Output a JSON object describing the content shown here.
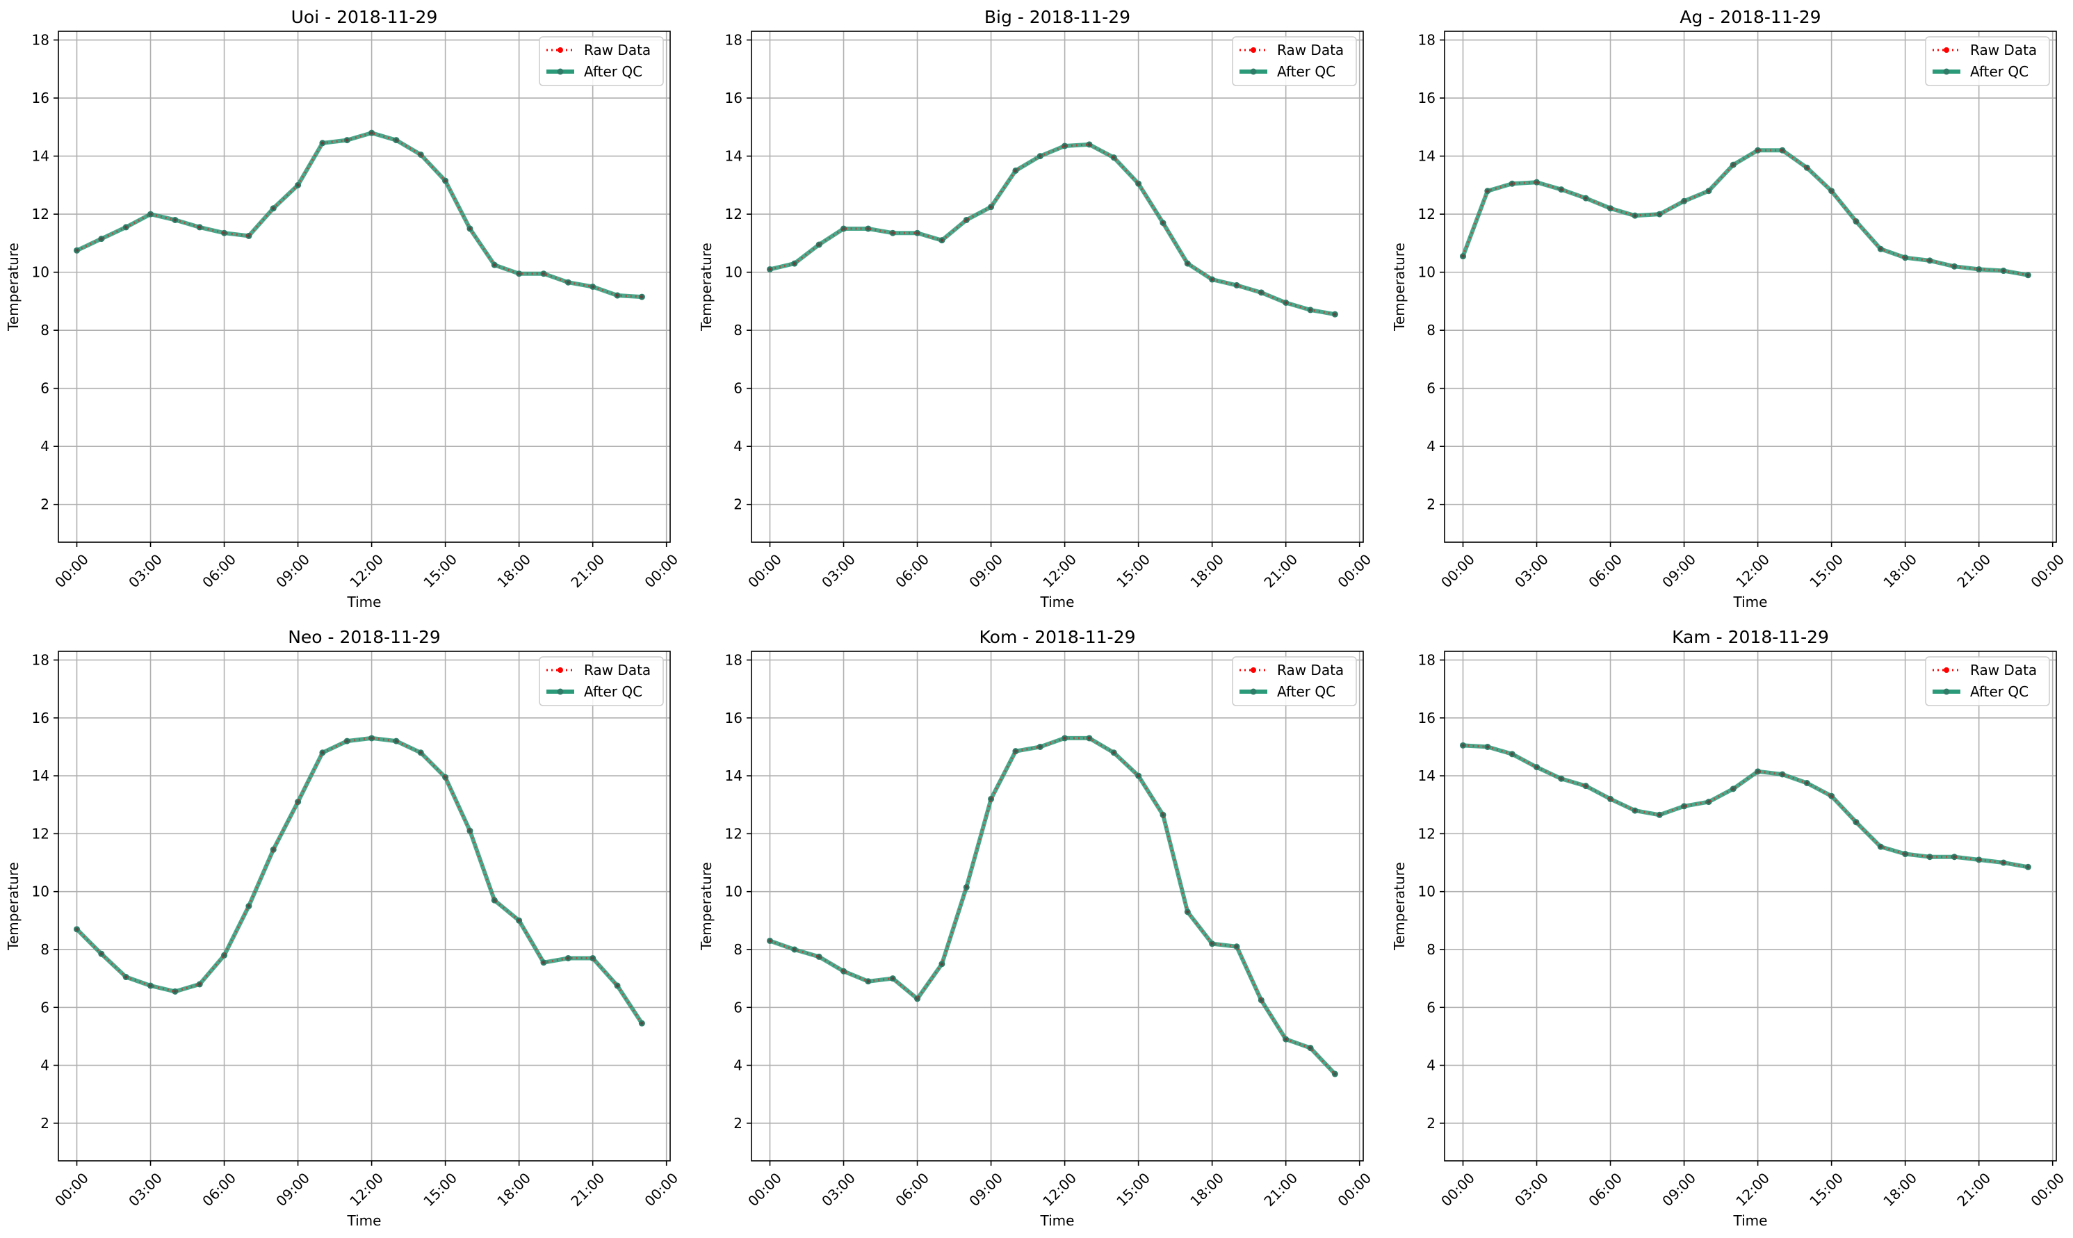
{
  "chart_data": [
    {
      "type": "line",
      "title": "Uoi - 2018-11-29",
      "xlabel": "Time",
      "ylabel": "Temperature",
      "ylim": [
        0.7,
        18.3
      ],
      "yticks": [
        2,
        4,
        6,
        8,
        10,
        12,
        14,
        16,
        18
      ],
      "xlim": [
        -0.75,
        24.15
      ],
      "xticks": [
        0,
        3,
        6,
        9,
        12,
        15,
        18,
        21,
        24
      ],
      "xticklabels": [
        "00:00",
        "03:00",
        "06:00",
        "09:00",
        "12:00",
        "15:00",
        "18:00",
        "21:00",
        "00:00"
      ],
      "x": [
        0,
        1,
        2,
        3,
        4,
        5,
        6,
        7,
        8,
        9,
        10,
        11,
        12,
        13,
        14,
        15,
        16,
        17,
        18,
        19,
        20,
        21,
        22,
        23
      ],
      "grid": true,
      "legend": "top-right",
      "series": [
        {
          "name": "Raw Data",
          "color": "#ff0000",
          "style": "dotted",
          "values": [
            10.75,
            11.15,
            11.55,
            12.0,
            11.8,
            11.55,
            11.35,
            11.25,
            12.2,
            13.0,
            14.45,
            14.55,
            14.8,
            14.55,
            14.05,
            13.15,
            11.5,
            10.25,
            9.95,
            9.95,
            9.65,
            9.5,
            9.2,
            9.15
          ]
        },
        {
          "name": "After QC",
          "color": "#2a9a78",
          "style": "solid",
          "values": [
            10.75,
            11.15,
            11.55,
            12.0,
            11.8,
            11.55,
            11.35,
            11.25,
            12.2,
            13.0,
            14.45,
            14.55,
            14.8,
            14.55,
            14.05,
            13.15,
            11.5,
            10.25,
            9.95,
            9.95,
            9.65,
            9.5,
            9.2,
            9.15
          ]
        }
      ]
    },
    {
      "type": "line",
      "title": "Big - 2018-11-29",
      "xlabel": "Time",
      "ylabel": "Temperature",
      "ylim": [
        0.7,
        18.3
      ],
      "yticks": [
        2,
        4,
        6,
        8,
        10,
        12,
        14,
        16,
        18
      ],
      "xlim": [
        -0.75,
        24.15
      ],
      "xticks": [
        0,
        3,
        6,
        9,
        12,
        15,
        18,
        21,
        24
      ],
      "xticklabels": [
        "00:00",
        "03:00",
        "06:00",
        "09:00",
        "12:00",
        "15:00",
        "18:00",
        "21:00",
        "00:00"
      ],
      "x": [
        0,
        1,
        2,
        3,
        4,
        5,
        6,
        7,
        8,
        9,
        10,
        11,
        12,
        13,
        14,
        15,
        16,
        17,
        18,
        19,
        20,
        21,
        22,
        23
      ],
      "grid": true,
      "legend": "top-right",
      "series": [
        {
          "name": "Raw Data",
          "color": "#ff0000",
          "style": "dotted",
          "values": [
            10.1,
            10.3,
            10.95,
            11.5,
            11.5,
            11.35,
            11.35,
            11.1,
            11.8,
            12.25,
            13.5,
            14.0,
            14.35,
            14.4,
            13.95,
            13.05,
            11.7,
            10.3,
            9.75,
            9.55,
            9.3,
            8.95,
            8.7,
            8.55
          ]
        },
        {
          "name": "After QC",
          "color": "#2a9a78",
          "style": "solid",
          "values": [
            10.1,
            10.3,
            10.95,
            11.5,
            11.5,
            11.35,
            11.35,
            11.1,
            11.8,
            12.25,
            13.5,
            14.0,
            14.35,
            14.4,
            13.95,
            13.05,
            11.7,
            10.3,
            9.75,
            9.55,
            9.3,
            8.95,
            8.7,
            8.55
          ]
        }
      ]
    },
    {
      "type": "line",
      "title": "Ag - 2018-11-29",
      "xlabel": "Time",
      "ylabel": "Temperature",
      "ylim": [
        0.7,
        18.3
      ],
      "yticks": [
        2,
        4,
        6,
        8,
        10,
        12,
        14,
        16,
        18
      ],
      "xlim": [
        -0.75,
        24.15
      ],
      "xticks": [
        0,
        3,
        6,
        9,
        12,
        15,
        18,
        21,
        24
      ],
      "xticklabels": [
        "00:00",
        "03:00",
        "06:00",
        "09:00",
        "12:00",
        "15:00",
        "18:00",
        "21:00",
        "00:00"
      ],
      "x": [
        0,
        1,
        2,
        3,
        4,
        5,
        6,
        7,
        8,
        9,
        10,
        11,
        12,
        13,
        14,
        15,
        16,
        17,
        18,
        19,
        20,
        21,
        22,
        23
      ],
      "grid": true,
      "legend": "top-right",
      "series": [
        {
          "name": "Raw Data",
          "color": "#ff0000",
          "style": "dotted",
          "values": [
            10.55,
            12.8,
            13.05,
            13.1,
            12.85,
            12.55,
            12.2,
            11.95,
            12.0,
            12.45,
            12.8,
            13.7,
            14.2,
            14.2,
            13.6,
            12.8,
            11.75,
            10.8,
            10.5,
            10.4,
            10.2,
            10.1,
            10.05,
            9.9
          ]
        },
        {
          "name": "After QC",
          "color": "#2a9a78",
          "style": "solid",
          "values": [
            10.55,
            12.8,
            13.05,
            13.1,
            12.85,
            12.55,
            12.2,
            11.95,
            12.0,
            12.45,
            12.8,
            13.7,
            14.2,
            14.2,
            13.6,
            12.8,
            11.75,
            10.8,
            10.5,
            10.4,
            10.2,
            10.1,
            10.05,
            9.9
          ]
        }
      ]
    },
    {
      "type": "line",
      "title": "Neo - 2018-11-29",
      "xlabel": "Time",
      "ylabel": "Temperature",
      "ylim": [
        0.7,
        18.3
      ],
      "yticks": [
        2,
        4,
        6,
        8,
        10,
        12,
        14,
        16,
        18
      ],
      "xlim": [
        -0.75,
        24.15
      ],
      "xticks": [
        0,
        3,
        6,
        9,
        12,
        15,
        18,
        21,
        24
      ],
      "xticklabels": [
        "00:00",
        "03:00",
        "06:00",
        "09:00",
        "12:00",
        "15:00",
        "18:00",
        "21:00",
        "00:00"
      ],
      "x": [
        0,
        1,
        2,
        3,
        4,
        5,
        6,
        7,
        8,
        9,
        10,
        11,
        12,
        13,
        14,
        15,
        16,
        17,
        18,
        19,
        20,
        21,
        22,
        23
      ],
      "grid": true,
      "legend": "top-right",
      "series": [
        {
          "name": "Raw Data",
          "color": "#ff0000",
          "style": "dotted",
          "values": [
            8.7,
            7.85,
            7.05,
            6.75,
            6.55,
            6.8,
            7.8,
            9.5,
            11.45,
            13.1,
            14.8,
            15.2,
            15.3,
            15.2,
            14.8,
            13.95,
            12.1,
            9.7,
            9.0,
            7.55,
            7.7,
            7.7,
            6.75,
            5.45
          ]
        },
        {
          "name": "After QC",
          "color": "#2a9a78",
          "style": "solid",
          "values": [
            8.7,
            7.85,
            7.05,
            6.75,
            6.55,
            6.8,
            7.8,
            9.5,
            11.45,
            13.1,
            14.8,
            15.2,
            15.3,
            15.2,
            14.8,
            13.95,
            12.1,
            9.7,
            9.0,
            7.55,
            7.7,
            7.7,
            6.75,
            5.45
          ]
        }
      ]
    },
    {
      "type": "line",
      "title": "Kom - 2018-11-29",
      "xlabel": "Time",
      "ylabel": "Temperature",
      "ylim": [
        0.7,
        18.3
      ],
      "yticks": [
        2,
        4,
        6,
        8,
        10,
        12,
        14,
        16,
        18
      ],
      "xlim": [
        -0.75,
        24.15
      ],
      "xticks": [
        0,
        3,
        6,
        9,
        12,
        15,
        18,
        21,
        24
      ],
      "xticklabels": [
        "00:00",
        "03:00",
        "06:00",
        "09:00",
        "12:00",
        "15:00",
        "18:00",
        "21:00",
        "00:00"
      ],
      "x": [
        0,
        1,
        2,
        3,
        4,
        5,
        6,
        7,
        8,
        9,
        10,
        11,
        12,
        13,
        14,
        15,
        16,
        17,
        18,
        19,
        20,
        21,
        22,
        23
      ],
      "grid": true,
      "legend": "top-right",
      "series": [
        {
          "name": "Raw Data",
          "color": "#ff0000",
          "style": "dotted",
          "values": [
            8.3,
            8.0,
            7.75,
            7.25,
            6.9,
            7.0,
            6.3,
            7.5,
            10.15,
            13.2,
            14.85,
            15.0,
            15.3,
            15.3,
            14.8,
            14.0,
            12.65,
            9.3,
            8.2,
            8.1,
            6.25,
            4.9,
            4.6,
            3.7
          ]
        },
        {
          "name": "After QC",
          "color": "#2a9a78",
          "style": "solid",
          "values": [
            8.3,
            8.0,
            7.75,
            7.25,
            6.9,
            7.0,
            6.3,
            7.5,
            10.15,
            13.2,
            14.85,
            15.0,
            15.3,
            15.3,
            14.8,
            14.0,
            12.65,
            9.3,
            8.2,
            8.1,
            6.25,
            4.9,
            4.6,
            3.7
          ]
        }
      ]
    },
    {
      "type": "line",
      "title": "Kam - 2018-11-29",
      "xlabel": "Time",
      "ylabel": "Temperature",
      "ylim": [
        0.7,
        18.3
      ],
      "yticks": [
        2,
        4,
        6,
        8,
        10,
        12,
        14,
        16,
        18
      ],
      "xlim": [
        -0.75,
        24.15
      ],
      "xticks": [
        0,
        3,
        6,
        9,
        12,
        15,
        18,
        21,
        24
      ],
      "xticklabels": [
        "00:00",
        "03:00",
        "06:00",
        "09:00",
        "12:00",
        "15:00",
        "18:00",
        "21:00",
        "00:00"
      ],
      "x": [
        0,
        1,
        2,
        3,
        4,
        5,
        6,
        7,
        8,
        9,
        10,
        11,
        12,
        13,
        14,
        15,
        16,
        17,
        18,
        19,
        20,
        21,
        22,
        23
      ],
      "grid": true,
      "legend": "top-right",
      "series": [
        {
          "name": "Raw Data",
          "color": "#ff0000",
          "style": "dotted",
          "values": [
            15.05,
            15.0,
            14.75,
            14.3,
            13.9,
            13.65,
            13.2,
            12.8,
            12.65,
            12.95,
            13.1,
            13.55,
            14.15,
            14.05,
            13.75,
            13.3,
            12.4,
            11.55,
            11.3,
            11.2,
            11.2,
            11.1,
            11.0,
            10.85
          ]
        },
        {
          "name": "After QC",
          "color": "#2a9a78",
          "style": "solid",
          "values": [
            15.05,
            15.0,
            14.75,
            14.3,
            13.9,
            13.65,
            13.2,
            12.8,
            12.65,
            12.95,
            13.1,
            13.55,
            14.15,
            14.05,
            13.75,
            13.3,
            12.4,
            11.55,
            11.3,
            11.2,
            11.2,
            11.1,
            11.0,
            10.85
          ]
        }
      ]
    }
  ]
}
